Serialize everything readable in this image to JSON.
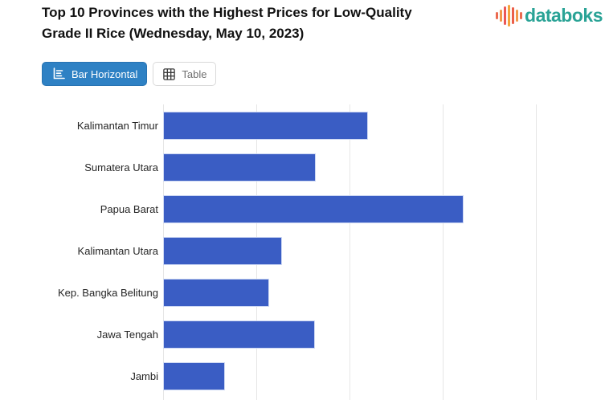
{
  "header": {
    "title": "Top 10 Provinces with the Highest Prices for Low-Quality Grade II Rice (Wednesday, May 10, 2023)",
    "brand": {
      "name": "databoks",
      "text_color": "#2aa396",
      "icon_bar_colors": [
        "#eb6a4f",
        "#f2994a",
        "#eb5757",
        "#f5a33b",
        "#eb5f49",
        "#f2994a",
        "#eb6a4f"
      ]
    }
  },
  "toolbar": {
    "view_buttons": [
      {
        "label": "Bar Horizontal",
        "active": true,
        "icon": "bar-horizontal-icon"
      },
      {
        "label": "Table",
        "active": false,
        "icon": "table-icon"
      }
    ],
    "active_bg": "#2e81c4"
  },
  "chart_data": {
    "type": "bar",
    "orientation": "horizontal",
    "title": "Top 10 Provinces with the Highest Prices for Low-Quality Grade II Rice (Wednesday, May 10, 2023)",
    "categories": [
      "Kalimantan Timur",
      "Sumatera Utara",
      "Papua Barat",
      "Kalimantan Utara",
      "Kep. Bangka Belitung",
      "Jawa Tengah",
      "Jambi"
    ],
    "values": [
      2.2,
      1.64,
      3.22,
      1.28,
      1.14,
      1.63,
      0.66
    ],
    "value_unit": "gridline units (x-axis tick labels cropped out of view)",
    "xlabel": "",
    "ylabel": "",
    "xlim": [
      0,
      4.74
    ],
    "gridline_interval": 1,
    "grid": true,
    "legend": "none",
    "bar_color": "#3a5dc4",
    "bar_border_color": "#ccd7f3",
    "gridline_color": "#e6e6e6",
    "visible_rows": 7,
    "note": "Bottom of chart (x-axis and remaining top-10 bars) is cropped at the image edge"
  }
}
